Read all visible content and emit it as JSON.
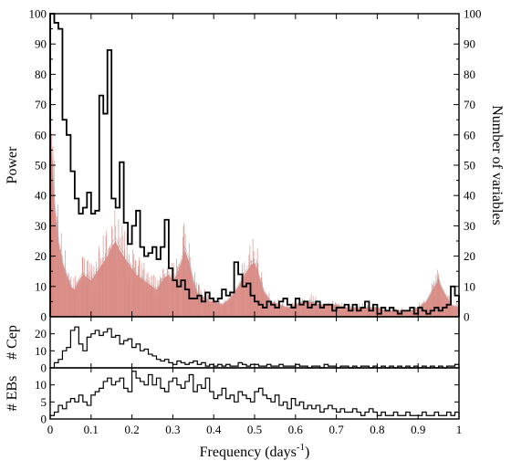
{
  "chart_data": [
    {
      "type": "area",
      "panel": "main",
      "ylabel": "Power",
      "y2label": "Number of variables",
      "xlim": [
        0,
        1
      ],
      "ylim": [
        0,
        100
      ],
      "y2lim": [
        0,
        100
      ],
      "x_ticks": [
        0,
        0.1,
        0.2,
        0.3,
        0.4,
        0.5,
        0.6,
        0.7,
        0.8,
        0.9,
        1
      ],
      "y_ticks": [
        0,
        10,
        20,
        30,
        40,
        50,
        60,
        70,
        80,
        90,
        100
      ],
      "y_tick_labels": [
        "0",
        "10",
        "20",
        "30",
        "40",
        "50",
        "60",
        "70",
        "80",
        "90",
        "100"
      ],
      "grid": false,
      "series": [
        {
          "role": "power-spectrum",
          "color": "#d98c86",
          "x": [
            0,
            0.005,
            0.01,
            0.02,
            0.03,
            0.04,
            0.05,
            0.06,
            0.07,
            0.08,
            0.09,
            0.1,
            0.11,
            0.12,
            0.13,
            0.14,
            0.15,
            0.16,
            0.17,
            0.18,
            0.19,
            0.2,
            0.21,
            0.22,
            0.23,
            0.24,
            0.25,
            0.26,
            0.27,
            0.28,
            0.29,
            0.3,
            0.31,
            0.32,
            0.33,
            0.34,
            0.35,
            0.36,
            0.37,
            0.38,
            0.39,
            0.4,
            0.42,
            0.44,
            0.46,
            0.48,
            0.49,
            0.5,
            0.51,
            0.52,
            0.54,
            0.56,
            0.58,
            0.6,
            0.62,
            0.64,
            0.66,
            0.68,
            0.7,
            0.72,
            0.74,
            0.76,
            0.78,
            0.8,
            0.82,
            0.84,
            0.86,
            0.88,
            0.9,
            0.92,
            0.94,
            0.95,
            0.96,
            0.98,
            1.0
          ],
          "values": [
            55,
            50,
            38,
            25,
            18,
            14,
            10,
            9,
            12,
            14,
            13,
            12,
            14,
            16,
            18,
            20,
            23,
            25,
            22,
            20,
            18,
            16,
            14,
            13,
            12,
            11,
            10,
            9,
            11,
            13,
            14,
            12,
            14,
            18,
            22,
            18,
            12,
            8,
            7,
            6,
            5,
            5,
            4,
            6,
            10,
            15,
            17,
            18,
            14,
            9,
            5,
            4,
            3,
            4,
            5,
            5,
            4,
            4,
            4,
            3,
            3,
            3,
            3,
            3,
            2,
            2,
            2,
            2,
            3,
            5,
            10,
            12,
            9,
            4,
            3
          ]
        },
        {
          "role": "number-of-variables",
          "color": "#000000",
          "bin_edges": [
            0,
            0.01,
            0.02,
            0.03,
            0.04,
            0.05,
            0.06,
            0.07,
            0.08,
            0.09,
            0.1,
            0.11,
            0.12,
            0.13,
            0.14,
            0.15,
            0.16,
            0.17,
            0.18,
            0.19,
            0.2,
            0.21,
            0.22,
            0.23,
            0.24,
            0.25,
            0.26,
            0.27,
            0.28,
            0.29,
            0.3,
            0.31,
            0.32,
            0.33,
            0.34,
            0.35,
            0.36,
            0.37,
            0.38,
            0.39,
            0.4,
            0.41,
            0.42,
            0.43,
            0.44,
            0.45,
            0.46,
            0.47,
            0.48,
            0.49,
            0.5,
            0.51,
            0.52,
            0.53,
            0.54,
            0.55,
            0.56,
            0.57,
            0.58,
            0.59,
            0.6,
            0.61,
            0.62,
            0.63,
            0.64,
            0.65,
            0.66,
            0.67,
            0.68,
            0.69,
            0.7,
            0.71,
            0.72,
            0.73,
            0.74,
            0.75,
            0.76,
            0.77,
            0.78,
            0.79,
            0.8,
            0.81,
            0.82,
            0.83,
            0.84,
            0.85,
            0.86,
            0.87,
            0.88,
            0.89,
            0.9,
            0.91,
            0.92,
            0.93,
            0.94,
            0.95,
            0.96,
            0.97,
            0.98,
            0.99,
            1.0
          ],
          "values": [
            100,
            97,
            95,
            65,
            60,
            48,
            39,
            34,
            36,
            41,
            34,
            35,
            73,
            67,
            88,
            39,
            36,
            51,
            31,
            24,
            30,
            35,
            23,
            20,
            21,
            23,
            19,
            23,
            32,
            16,
            12,
            10,
            12,
            9,
            6,
            6,
            7,
            5,
            8,
            6,
            5,
            6,
            9,
            7,
            8,
            18,
            14,
            10,
            11,
            7,
            5,
            4,
            3,
            5,
            4,
            3,
            5,
            6,
            4,
            3,
            6,
            4,
            5,
            3,
            4,
            5,
            3,
            4,
            4,
            2,
            3,
            3,
            4,
            2,
            4,
            2,
            3,
            5,
            2,
            4,
            1,
            3,
            2,
            3,
            2,
            1,
            2,
            2,
            3,
            1,
            3,
            2,
            1,
            2,
            3,
            2,
            3,
            4,
            10,
            7
          ]
        }
      ]
    },
    {
      "type": "bar",
      "panel": "cepheids",
      "ylabel": "# Cep",
      "xlim": [
        0,
        1
      ],
      "ylim": [
        0,
        30
      ],
      "y_ticks": [
        0,
        10,
        20
      ],
      "y_tick_labels": [
        "0",
        "10",
        "20"
      ],
      "bin_width": 0.01,
      "values": [
        0,
        3,
        5,
        10,
        12,
        22,
        24,
        14,
        10,
        18,
        20,
        22,
        19,
        21,
        23,
        18,
        19,
        14,
        16,
        17,
        12,
        14,
        10,
        11,
        8,
        7,
        5,
        4,
        5,
        3,
        2,
        4,
        3,
        2,
        3,
        4,
        2,
        3,
        1,
        2,
        1,
        2,
        1,
        2,
        1,
        1,
        3,
        2,
        1,
        2,
        2,
        1,
        1,
        2,
        1,
        1,
        2,
        1,
        1,
        1,
        2,
        1,
        1,
        0,
        1,
        1,
        0,
        2,
        1,
        1,
        0,
        1,
        1,
        0,
        1,
        0,
        1,
        1,
        0,
        1,
        0,
        1,
        0,
        1,
        0,
        1,
        0,
        1,
        0,
        1,
        0,
        1,
        0,
        1,
        0,
        1,
        0,
        1,
        1,
        2
      ]
    },
    {
      "type": "bar",
      "panel": "eclipsing-binaries",
      "ylabel": "# EBs",
      "xlim": [
        0,
        1
      ],
      "ylim": [
        0,
        15
      ],
      "y_ticks": [
        0,
        5,
        10
      ],
      "y_tick_labels": [
        "0",
        "5",
        "10"
      ],
      "bin_width": 0.01,
      "values": [
        1,
        2,
        4,
        3,
        5,
        6,
        5,
        7,
        5,
        4,
        7,
        8,
        9,
        11,
        12,
        10,
        11,
        12,
        9,
        8,
        14,
        12,
        11,
        10,
        13,
        10,
        12,
        9,
        8,
        11,
        12,
        10,
        9,
        11,
        13,
        8,
        10,
        9,
        12,
        8,
        6,
        7,
        9,
        6,
        7,
        5,
        8,
        7,
        6,
        5,
        8,
        9,
        7,
        6,
        5,
        7,
        4,
        5,
        3,
        6,
        4,
        5,
        3,
        4,
        3,
        4,
        2,
        3,
        4,
        3,
        2,
        3,
        2,
        2,
        3,
        2,
        1,
        2,
        3,
        2,
        1,
        2,
        1,
        1,
        2,
        1,
        1,
        2,
        1,
        1,
        1,
        2,
        1,
        1,
        2,
        1,
        1,
        2,
        1,
        2
      ]
    }
  ],
  "xlabel_main": "Frequency (days",
  "xlabel_superscript": "-1",
  "xlabel_close": ")",
  "x_tick_labels": [
    "0",
    "0.1",
    "0.2",
    "0.3",
    "0.4",
    "0.5",
    "0.6",
    "0.7",
    "0.8",
    "0.9",
    "1"
  ]
}
